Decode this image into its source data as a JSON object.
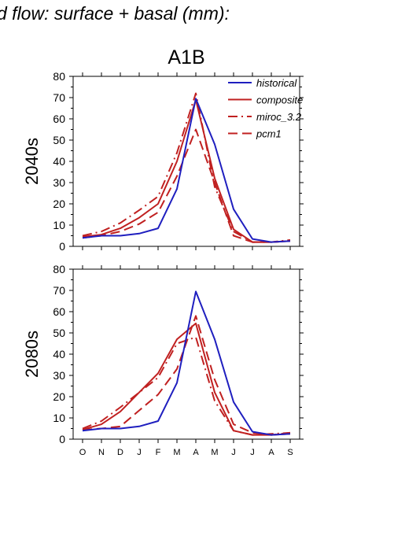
{
  "header": {
    "title": "d flow: surface + basal (mm):"
  },
  "chart_data": [
    {
      "type": "line",
      "title": "A1B",
      "ylabel": "2040s",
      "xlabel": "",
      "categories": [
        "O",
        "N",
        "D",
        "J",
        "F",
        "M",
        "A",
        "M",
        "J",
        "J",
        "A",
        "S"
      ],
      "ylim": [
        0,
        80
      ],
      "yticks": [
        0,
        10,
        20,
        30,
        40,
        50,
        60,
        70,
        80
      ],
      "show_xtick_labels": false,
      "legend_position": "top-right",
      "series": [
        {
          "name": "historical",
          "color": "#1f1fbf",
          "dash": "solid",
          "values": [
            4,
            5,
            5,
            6,
            8.5,
            27,
            69.5,
            48,
            17.5,
            3.5,
            2,
            2.5
          ]
        },
        {
          "name": "composite",
          "color": "#c02020",
          "dash": "solid",
          "values": [
            4.5,
            5.5,
            8.5,
            13.5,
            20,
            40,
            69,
            32,
            8,
            2,
            2,
            2.5
          ]
        },
        {
          "name": "miroc_3.2",
          "color": "#c02020",
          "dash": "dashdot",
          "values": [
            5,
            7,
            11,
            17,
            23.5,
            44,
            72,
            28,
            7,
            2,
            2,
            3
          ]
        },
        {
          "name": "pcm1",
          "color": "#c02020",
          "dash": "dash",
          "values": [
            4,
            5,
            7,
            10.5,
            16,
            33,
            55,
            30,
            5,
            2,
            2,
            2.5
          ]
        }
      ]
    },
    {
      "type": "line",
      "title": "",
      "ylabel": "2080s",
      "xlabel": "",
      "categories": [
        "O",
        "N",
        "D",
        "J",
        "F",
        "M",
        "A",
        "M",
        "J",
        "J",
        "A",
        "S"
      ],
      "ylim": [
        0,
        80
      ],
      "yticks": [
        0,
        10,
        20,
        30,
        40,
        50,
        60,
        70,
        80
      ],
      "show_xtick_labels": true,
      "legend_position": "none",
      "series": [
        {
          "name": "historical",
          "color": "#1f1fbf",
          "dash": "solid",
          "values": [
            4,
            5,
            5,
            6,
            8.5,
            26.5,
            69.5,
            47,
            17.5,
            3.5,
            2,
            2.5
          ]
        },
        {
          "name": "composite",
          "color": "#c02020",
          "dash": "solid",
          "values": [
            4.5,
            7,
            13,
            22,
            31,
            47,
            54.5,
            22,
            4,
            2,
            2,
            2.5
          ]
        },
        {
          "name": "miroc_3.2",
          "color": "#c02020",
          "dash": "dashdot",
          "values": [
            5,
            8.5,
            15,
            22,
            29,
            45,
            48,
            18,
            4,
            2,
            2.5,
            3
          ]
        },
        {
          "name": "pcm1",
          "color": "#c02020",
          "dash": "dash",
          "values": [
            4.5,
            5,
            6,
            13.5,
            21,
            33,
            58,
            28,
            7,
            3,
            2,
            3
          ]
        }
      ]
    }
  ]
}
